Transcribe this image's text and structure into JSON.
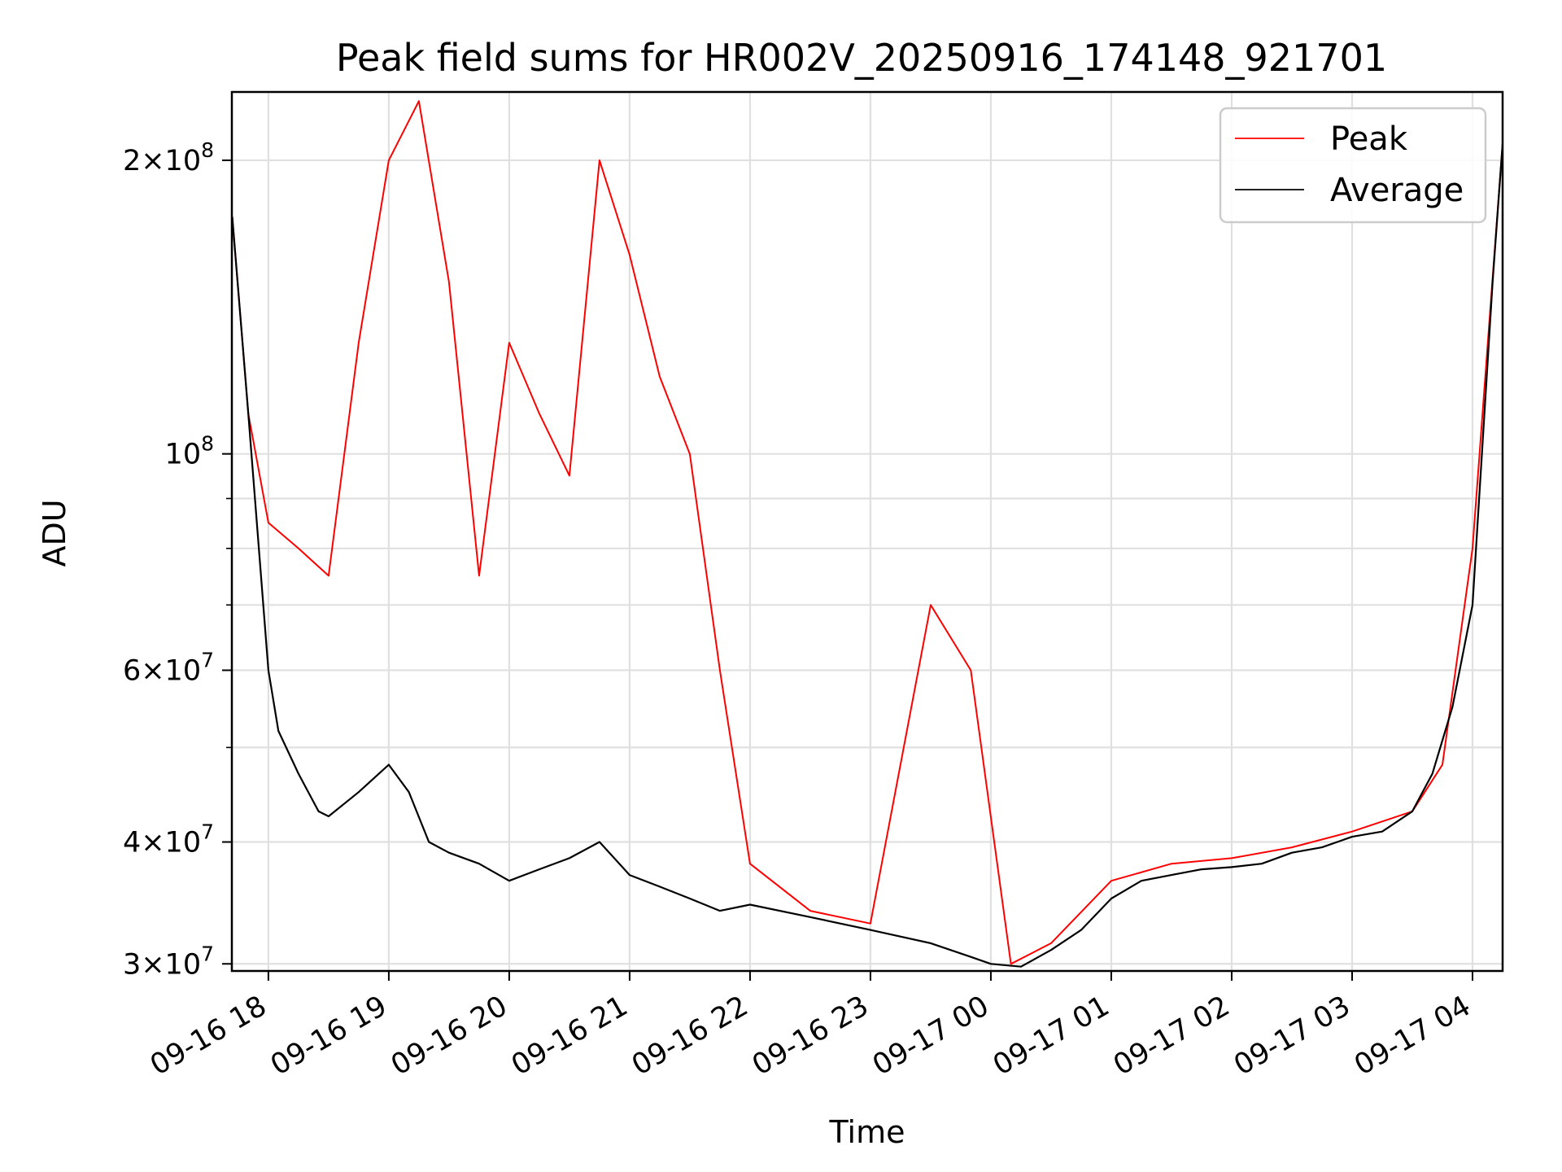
{
  "chart_data": {
    "type": "line",
    "title": "Peak field sums for HR002V_20250916_174148_921701",
    "xlabel": "Time",
    "ylabel": "ADU",
    "yscale": "log",
    "grid": true,
    "legend_position": "upper right",
    "xlim": [
      "09-16 17:41:48",
      "09-17 04:15"
    ],
    "ylim": [
      29500000,
      235000000
    ],
    "x_ticks": [
      "09-16 18",
      "09-16 19",
      "09-16 20",
      "09-16 21",
      "09-16 22",
      "09-16 23",
      "09-17 00",
      "09-17 01",
      "09-17 02",
      "09-17 03",
      "09-17 04"
    ],
    "y_ticks": [
      {
        "value": 30000000,
        "label": "3 × 10^7",
        "mantissa": "3",
        "exponent": "7"
      },
      {
        "value": 40000000,
        "label": "4 × 10^7",
        "mantissa": "4",
        "exponent": "7"
      },
      {
        "value": 60000000,
        "label": "6 × 10^7",
        "mantissa": "6",
        "exponent": "7"
      },
      {
        "value": 100000000,
        "label": "10^8",
        "mantissa": "",
        "exponent": "8"
      },
      {
        "value": 200000000,
        "label": "2 × 10^8",
        "mantissa": "2",
        "exponent": "8"
      }
    ],
    "series": [
      {
        "name": "Peak",
        "color": "#ff0000",
        "style": "thin line, dense spikes",
        "x": [
          "09-16 17:42",
          "09-16 17:50",
          "09-16 18:00",
          "09-16 18:15",
          "09-16 18:30",
          "09-16 18:45",
          "09-16 19:00",
          "09-16 19:15",
          "09-16 19:30",
          "09-16 19:45",
          "09-16 20:00",
          "09-16 20:15",
          "09-16 20:30",
          "09-16 20:45",
          "09-16 21:00",
          "09-16 21:15",
          "09-16 21:30",
          "09-16 21:45",
          "09-16 22:00",
          "09-16 22:30",
          "09-16 23:00",
          "09-16 23:30",
          "09-16 23:50",
          "09-17 00:10",
          "09-17 00:30",
          "09-17 01:00",
          "09-17 01:30",
          "09-17 02:00",
          "09-17 02:30",
          "09-17 03:00",
          "09-17 03:30",
          "09-17 03:45",
          "09-17 04:00",
          "09-17 04:15"
        ],
        "y": [
          175000000,
          110000000,
          85000000,
          80000000,
          75000000,
          130000000,
          200000000,
          230000000,
          150000000,
          75000000,
          130000000,
          110000000,
          95000000,
          200000000,
          160000000,
          120000000,
          100000000,
          60000000,
          38000000,
          34000000,
          33000000,
          70000000,
          60000000,
          30000000,
          31500000,
          36500000,
          38000000,
          38500000,
          39500000,
          41000000,
          43000000,
          48000000,
          80000000,
          208000000
        ]
      },
      {
        "name": "Average",
        "color": "#000000",
        "style": "thin line",
        "x": [
          "09-16 17:42",
          "09-16 17:50",
          "09-16 18:00",
          "09-16 18:05",
          "09-16 18:15",
          "09-16 18:25",
          "09-16 18:30",
          "09-16 18:45",
          "09-16 19:00",
          "09-16 19:10",
          "09-16 19:20",
          "09-16 19:30",
          "09-16 19:45",
          "09-16 20:00",
          "09-16 20:15",
          "09-16 20:30",
          "09-16 20:45",
          "09-16 21:00",
          "09-16 21:15",
          "09-16 21:30",
          "09-16 21:45",
          "09-16 22:00",
          "09-16 22:30",
          "09-16 23:00",
          "09-16 23:30",
          "09-16 23:50",
          "09-17 00:00",
          "09-17 00:15",
          "09-17 00:30",
          "09-17 00:45",
          "09-17 01:00",
          "09-17 01:15",
          "09-17 01:30",
          "09-17 01:45",
          "09-17 02:00",
          "09-17 02:15",
          "09-17 02:30",
          "09-17 02:45",
          "09-17 03:00",
          "09-17 03:15",
          "09-17 03:30",
          "09-17 03:40",
          "09-17 03:50",
          "09-17 04:00",
          "09-17 04:10",
          "09-17 04:15"
        ],
        "y": [
          175000000,
          110000000,
          60000000,
          52000000,
          47000000,
          43000000,
          42500000,
          45000000,
          48000000,
          45000000,
          40000000,
          39000000,
          38000000,
          36500000,
          37500000,
          38500000,
          40000000,
          37000000,
          36000000,
          35000000,
          34000000,
          34500000,
          33500000,
          32500000,
          31500000,
          30500000,
          30000000,
          29800000,
          31000000,
          32500000,
          35000000,
          36500000,
          37000000,
          37500000,
          37700000,
          38000000,
          39000000,
          39500000,
          40500000,
          41000000,
          43000000,
          47000000,
          55000000,
          70000000,
          150000000,
          208000000
        ]
      }
    ]
  }
}
